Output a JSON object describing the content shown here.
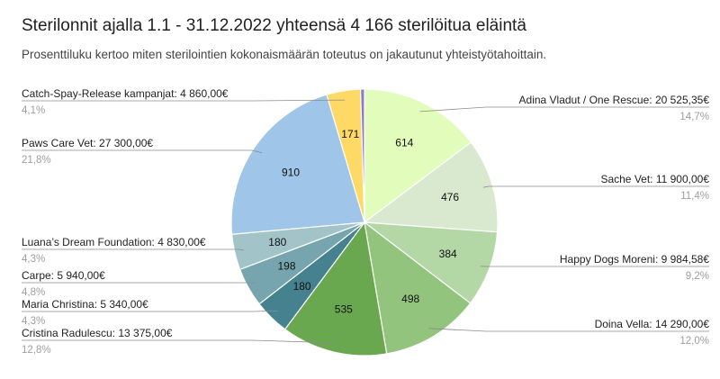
{
  "chart_data": {
    "type": "pie",
    "title": "Sterilonnit ajalla 1.1 - 31.12.2022 yhteensä 4 166 sterilöitua eläintä",
    "subtitle": "Prosenttiluku kertoo miten sterilointien kokonaismäärän toteutus on jakautunut yhteistyötahoittain.",
    "slices": [
      {
        "label": "Adina Vladut / One Rescue: 20 525,35€",
        "count": 614,
        "count_label": "614",
        "percent": 14.7,
        "percent_label": "14,7%",
        "color": "#e2fcbc"
      },
      {
        "label": "Sache Vet: 11 900,00€",
        "count": 476,
        "count_label": "476",
        "percent": 11.4,
        "percent_label": "11,4%",
        "color": "#d8e9cf"
      },
      {
        "label": "Happy Dogs Moreni: 9 984,58€",
        "count": 384,
        "count_label": "384",
        "percent": 9.2,
        "percent_label": "9,2%",
        "color": "#b4d7a6"
      },
      {
        "label": "Doina Vella: 14 290,00€",
        "count": 498,
        "count_label": "498",
        "percent": 12.0,
        "percent_label": "12,0%",
        "color": "#93c47d"
      },
      {
        "label": "Cristina Radulescu: 13 375,00€",
        "count": 535,
        "count_label": "535",
        "percent": 12.8,
        "percent_label": "12,8%",
        "color": "#6aa84f"
      },
      {
        "label": "Maria Christina: 5 340,00€",
        "count": 180,
        "count_label": "180",
        "percent": 4.3,
        "percent_label": "4,3%",
        "color": "#45818e"
      },
      {
        "label": "Carpe:  5 940,00€",
        "count": 198,
        "count_label": "198",
        "percent": 4.8,
        "percent_label": "4,8%",
        "color": "#76a5af"
      },
      {
        "label": "Luana’s Dream Foundation: 4 830,00€",
        "count": 180,
        "count_label": "180",
        "percent": 4.3,
        "percent_label": "4,3%",
        "color": "#a2c4c9"
      },
      {
        "label": "Paws Care Vet: 27 300,00€",
        "count": 910,
        "count_label": "910",
        "percent": 21.8,
        "percent_label": "21,8%",
        "color": "#9fc5e8"
      },
      {
        "label": "Catch-Spay-Release kampanjat: 4 860,00€",
        "count": 171,
        "count_label": "171",
        "percent": 4.1,
        "percent_label": "4,1%",
        "color": "#ffd966"
      },
      {
        "label": "",
        "count": 20,
        "count_label": "",
        "percent": 0.5,
        "percent_label": "",
        "color": "#8e7cc3"
      }
    ]
  }
}
